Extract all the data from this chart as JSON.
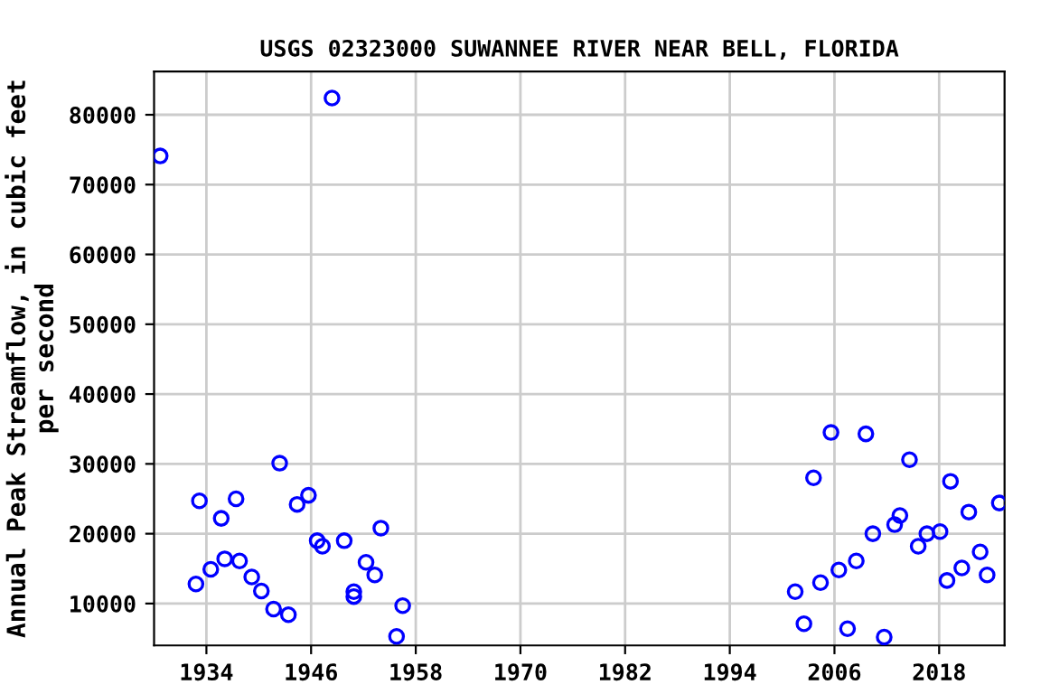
{
  "chart_data": {
    "type": "scatter",
    "title": "USGS 02323000 SUWANNEE RIVER NEAR BELL, FLORIDA",
    "ylabel": "Annual Peak Streamflow, in cubic feet\nper second",
    "x": [
      1928.7,
      1948.4,
      1932.8,
      1933.2,
      1934.5,
      1935.7,
      1936.1,
      1937.4,
      1937.8,
      1939.2,
      1940.3,
      1941.7,
      1942.4,
      1943.4,
      1944.4,
      1945.7,
      1946.7,
      1947.3,
      1949.8,
      1950.9,
      1950.9,
      1952.3,
      1953.3,
      1954.0,
      1956.5,
      1955.8,
      2001.5,
      2002.5,
      2003.6,
      2004.4,
      2005.6,
      2006.5,
      2007.5,
      2008.5,
      2009.6,
      2010.4,
      2011.7,
      2012.9,
      2013.5,
      2014.6,
      2015.6,
      2016.6,
      2018.1,
      2018.9,
      2019.3,
      2020.6,
      2021.4,
      2022.7,
      2023.5,
      2024.9
    ],
    "series": [
      {
        "color": "#0000ff",
        "values": [
          74100,
          82400,
          12800,
          24700,
          14900,
          22200,
          16400,
          25000,
          16100,
          13800,
          11800,
          9200,
          30100,
          8400,
          24200,
          25500,
          19000,
          18200,
          19000,
          11700,
          11000,
          15900,
          14100,
          20800,
          9700,
          5300,
          11700,
          7100,
          28000,
          13000,
          34500,
          14800,
          6400,
          16100,
          34300,
          20000,
          5200,
          21300,
          22600,
          30600,
          18200,
          20000,
          20300,
          13300,
          27500,
          15100,
          23100,
          17400,
          14100,
          24400
        ]
      }
    ],
    "xlim": [
      1928,
      2025.5
    ],
    "ylim": [
      4000,
      86200
    ],
    "xticks": [
      1934,
      1946,
      1958,
      1970,
      1982,
      1994,
      2006,
      2018
    ],
    "yticks": [
      10000,
      20000,
      30000,
      40000,
      50000,
      60000,
      70000,
      80000
    ],
    "grid": true,
    "marker": "circle"
  }
}
